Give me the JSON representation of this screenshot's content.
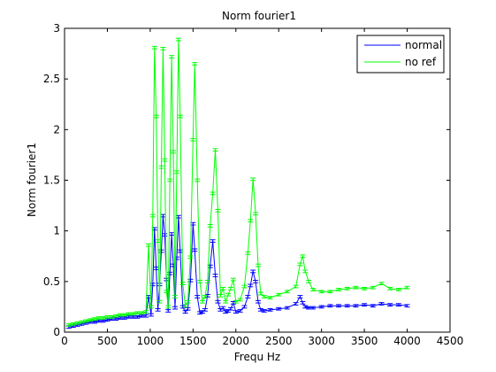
{
  "chart_data": {
    "type": "line",
    "title": "Norm fourier1",
    "xlabel": "Frequ Hz",
    "ylabel": "Norm fourier1",
    "xlim": [
      0,
      4500
    ],
    "ylim": [
      0,
      3
    ],
    "xticks": [
      0,
      500,
      1000,
      1500,
      2000,
      2500,
      3000,
      3500,
      4000,
      4500
    ],
    "xtick_labels": [
      "0",
      "500",
      "1000",
      "1500",
      "2000",
      "2500",
      "3000",
      "3500",
      "4000",
      "4500"
    ],
    "yticks": [
      0,
      0.5,
      1,
      1.5,
      2,
      2.5,
      3
    ],
    "ytick_labels": [
      "0",
      "0.5",
      "1",
      "1.5",
      "2",
      "2.5",
      "3"
    ],
    "grid": false,
    "legend_position": "top-right",
    "error_bar_halfwidth": 0.012,
    "series": [
      {
        "name": "normal",
        "color": "#0000ff",
        "x": [
          50,
          100,
          150,
          200,
          250,
          300,
          350,
          400,
          450,
          500,
          550,
          600,
          650,
          700,
          750,
          800,
          850,
          900,
          950,
          980,
          1010,
          1030,
          1050,
          1070,
          1090,
          1110,
          1130,
          1150,
          1170,
          1190,
          1210,
          1230,
          1250,
          1270,
          1290,
          1310,
          1330,
          1350,
          1380,
          1410,
          1440,
          1470,
          1500,
          1520,
          1550,
          1580,
          1610,
          1640,
          1670,
          1700,
          1730,
          1760,
          1790,
          1820,
          1850,
          1880,
          1910,
          1940,
          1970,
          2000,
          2050,
          2100,
          2140,
          2170,
          2200,
          2230,
          2260,
          2290,
          2330,
          2400,
          2500,
          2600,
          2700,
          2750,
          2780,
          2810,
          2850,
          2900,
          3000,
          3100,
          3200,
          3300,
          3400,
          3500,
          3600,
          3700,
          3800,
          3900,
          4000
        ],
        "y": [
          0.05,
          0.06,
          0.07,
          0.08,
          0.09,
          0.1,
          0.1,
          0.11,
          0.11,
          0.12,
          0.13,
          0.13,
          0.14,
          0.14,
          0.15,
          0.15,
          0.15,
          0.16,
          0.16,
          0.35,
          0.17,
          0.47,
          1.02,
          0.63,
          0.22,
          0.47,
          0.8,
          1.15,
          0.96,
          0.52,
          0.21,
          0.58,
          0.97,
          0.66,
          0.24,
          0.73,
          1.14,
          0.8,
          0.25,
          0.2,
          0.23,
          0.51,
          1.07,
          0.81,
          0.35,
          0.19,
          0.2,
          0.22,
          0.36,
          0.65,
          0.9,
          0.56,
          0.3,
          0.22,
          0.24,
          0.2,
          0.21,
          0.23,
          0.29,
          0.2,
          0.21,
          0.25,
          0.35,
          0.46,
          0.6,
          0.5,
          0.3,
          0.22,
          0.21,
          0.22,
          0.23,
          0.24,
          0.28,
          0.35,
          0.29,
          0.25,
          0.24,
          0.24,
          0.25,
          0.26,
          0.26,
          0.26,
          0.26,
          0.27,
          0.26,
          0.28,
          0.27,
          0.27,
          0.26
        ]
      },
      {
        "name": "no ref",
        "color": "#00ff00",
        "x": [
          50,
          100,
          150,
          200,
          250,
          300,
          350,
          400,
          450,
          500,
          550,
          600,
          650,
          700,
          750,
          800,
          850,
          900,
          950,
          980,
          1010,
          1030,
          1050,
          1070,
          1090,
          1110,
          1130,
          1150,
          1170,
          1190,
          1210,
          1230,
          1250,
          1270,
          1290,
          1310,
          1330,
          1350,
          1380,
          1410,
          1440,
          1470,
          1500,
          1520,
          1550,
          1580,
          1610,
          1640,
          1670,
          1700,
          1730,
          1760,
          1790,
          1820,
          1850,
          1880,
          1910,
          1940,
          1970,
          2000,
          2050,
          2100,
          2140,
          2170,
          2200,
          2230,
          2260,
          2290,
          2330,
          2400,
          2500,
          2600,
          2700,
          2750,
          2780,
          2810,
          2850,
          2900,
          3000,
          3100,
          3200,
          3300,
          3400,
          3500,
          3600,
          3700,
          3800,
          3900,
          4000
        ],
        "y": [
          0.07,
          0.08,
          0.09,
          0.1,
          0.11,
          0.12,
          0.13,
          0.14,
          0.14,
          0.15,
          0.15,
          0.16,
          0.17,
          0.17,
          0.18,
          0.18,
          0.19,
          0.19,
          0.2,
          0.86,
          0.25,
          1.15,
          2.81,
          2.13,
          0.9,
          0.3,
          1.63,
          2.8,
          1.7,
          0.4,
          0.25,
          1.5,
          2.72,
          1.78,
          0.35,
          1.58,
          2.89,
          2.13,
          0.48,
          0.26,
          0.3,
          0.74,
          1.9,
          2.65,
          1.5,
          0.5,
          0.3,
          0.35,
          0.5,
          1.05,
          1.37,
          1.8,
          1.2,
          0.36,
          0.43,
          0.3,
          0.37,
          0.43,
          0.52,
          0.3,
          0.32,
          0.45,
          0.78,
          1.1,
          1.51,
          1.17,
          0.66,
          0.38,
          0.35,
          0.34,
          0.37,
          0.4,
          0.45,
          0.67,
          0.75,
          0.6,
          0.5,
          0.42,
          0.4,
          0.4,
          0.42,
          0.43,
          0.44,
          0.43,
          0.44,
          0.48,
          0.43,
          0.42,
          0.44
        ]
      }
    ]
  }
}
